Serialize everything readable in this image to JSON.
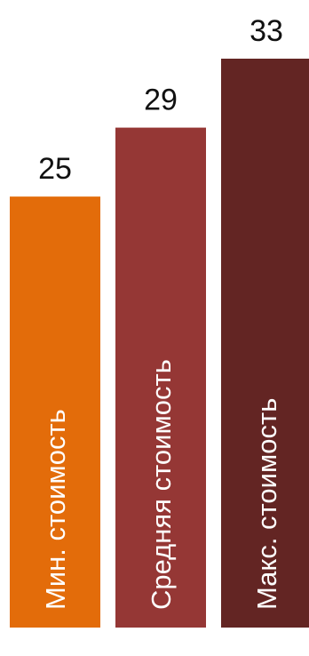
{
  "chart_data": {
    "type": "bar",
    "categories": [
      "Мин. стоимость",
      "Средняя стоимость",
      "Макс. стоимость"
    ],
    "values": [
      25,
      29,
      33
    ],
    "colors": [
      "#E36C0A",
      "#953735",
      "#632523"
    ],
    "ylim": [
      0,
      33
    ],
    "grid": false,
    "legend": "none",
    "data_labels": true,
    "category_labels_inside_bars": "vertical"
  }
}
